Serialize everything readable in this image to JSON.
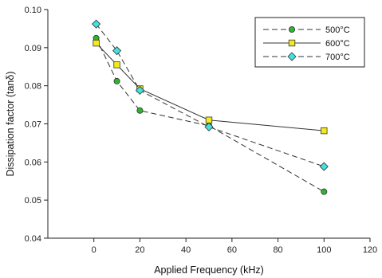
{
  "chart_data": {
    "type": "line",
    "xlabel": "Applied Frequency (kHz)",
    "ylabel": "Dissipation factor (tanδ)",
    "xlim": [
      -20,
      120
    ],
    "ylim": [
      0.04,
      0.1
    ],
    "xticks": [
      0,
      20,
      40,
      60,
      80,
      100,
      120
    ],
    "yticks": [
      0.04,
      0.05,
      0.06,
      0.07,
      0.08,
      0.09,
      0.1
    ],
    "grid": false,
    "legend_position": "top-right",
    "series": [
      {
        "name": "500°C",
        "x": [
          1,
          10,
          20,
          50,
          100
        ],
        "values": [
          0.0925,
          0.0812,
          0.0735,
          0.0695,
          0.0522
        ],
        "line_style": "dashed",
        "marker": "circle",
        "marker_color": "#2db52d"
      },
      {
        "name": "600°C",
        "x": [
          1,
          10,
          20,
          50,
          100
        ],
        "values": [
          0.0912,
          0.0855,
          0.0792,
          0.071,
          0.0682
        ],
        "line_style": "solid",
        "marker": "square",
        "marker_color": "#f0ea1e"
      },
      {
        "name": "700°C",
        "x": [
          1,
          10,
          20,
          50,
          100
        ],
        "values": [
          0.0962,
          0.0892,
          0.0788,
          0.0692,
          0.0588
        ],
        "line_style": "dashed",
        "marker": "diamond",
        "marker_color": "#46e0e0"
      }
    ]
  }
}
